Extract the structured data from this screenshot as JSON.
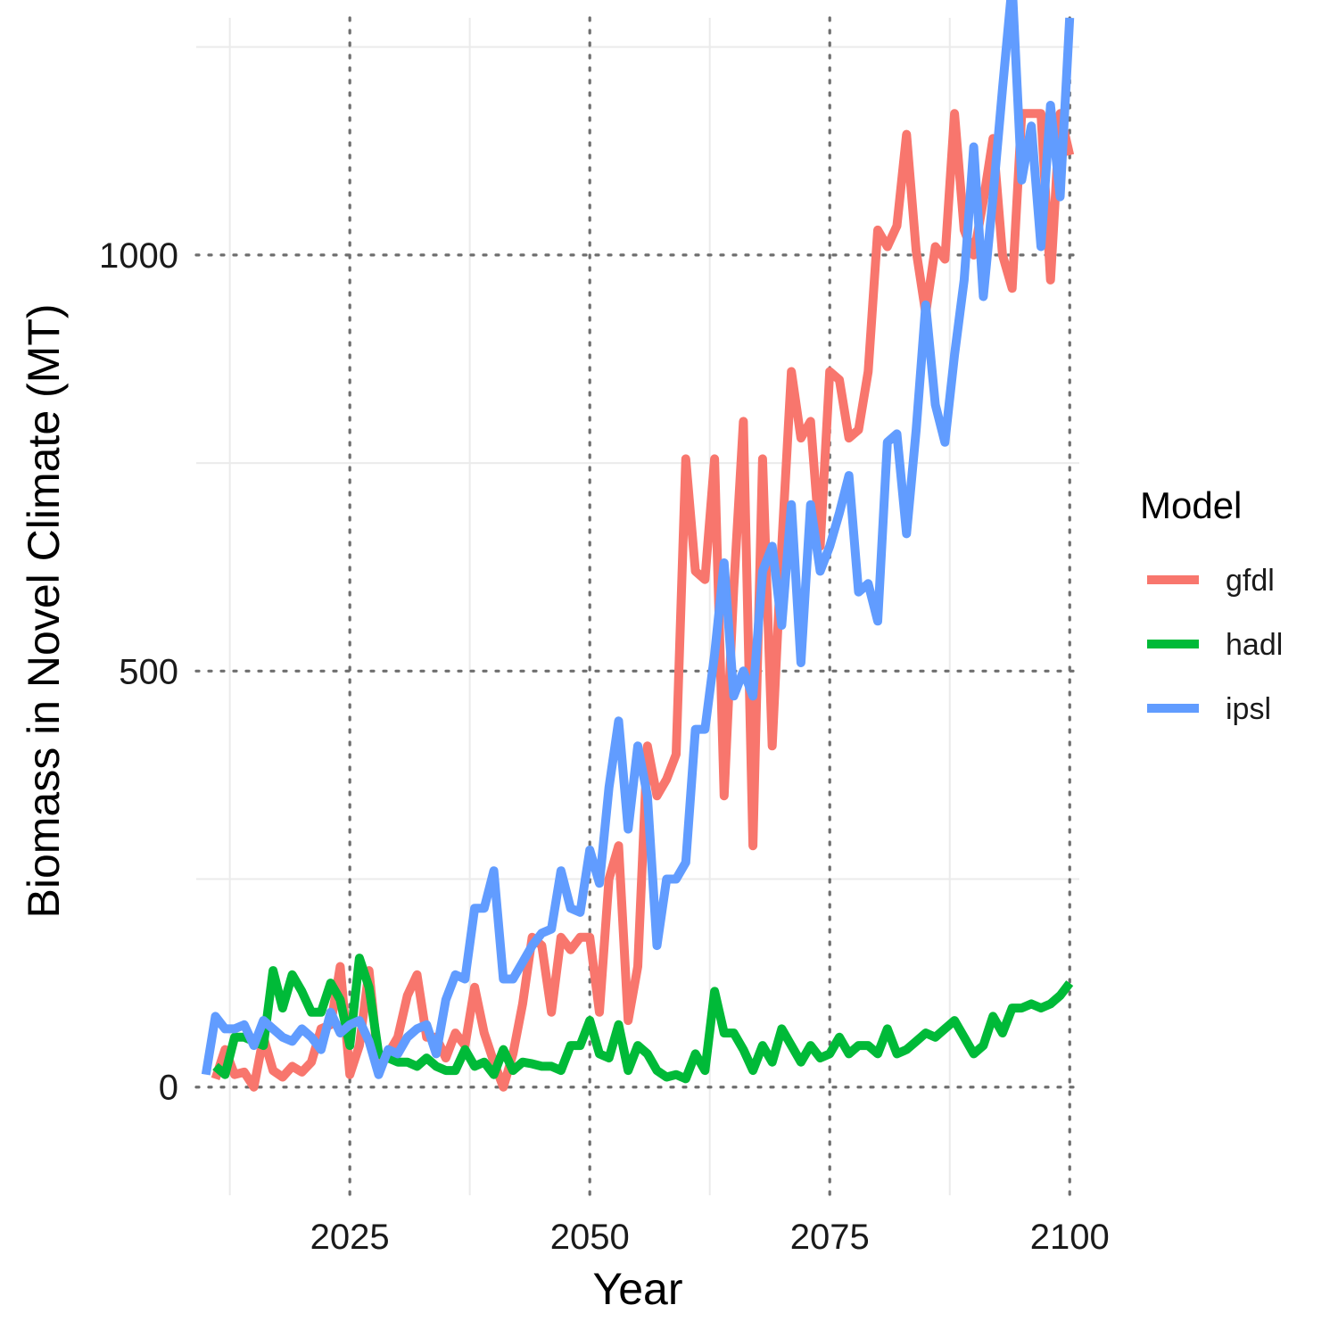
{
  "chart_data": {
    "type": "line",
    "xlabel": "Year",
    "ylabel": "Biomass in Novel Climate (MT)",
    "xlim": [
      2009,
      2101
    ],
    "ylim": [
      -130,
      1285
    ],
    "x_ticks": [
      2025,
      2050,
      2075,
      2100
    ],
    "x_tick_labels": [
      "2025",
      "2050",
      "2075",
      "2100"
    ],
    "y_ticks": [
      0,
      500,
      1000
    ],
    "y_tick_labels": [
      "0",
      "500",
      "1000"
    ],
    "grid": true,
    "legend": {
      "title": "Model",
      "position": "right"
    },
    "series": [
      {
        "name": "gfdl",
        "color": "#F8766D",
        "x": [
          2011,
          2012,
          2013,
          2014,
          2015,
          2016,
          2017,
          2018,
          2019,
          2020,
          2021,
          2022,
          2023,
          2024,
          2025,
          2026,
          2027,
          2028,
          2029,
          2030,
          2031,
          2032,
          2033,
          2034,
          2035,
          2036,
          2037,
          2038,
          2039,
          2040,
          2041,
          2042,
          2043,
          2044,
          2045,
          2046,
          2047,
          2048,
          2049,
          2050,
          2051,
          2052,
          2053,
          2054,
          2055,
          2056,
          2057,
          2058,
          2059,
          2060,
          2061,
          2062,
          2063,
          2064,
          2065,
          2066,
          2067,
          2068,
          2069,
          2070,
          2071,
          2072,
          2073,
          2074,
          2075,
          2076,
          2077,
          2078,
          2079,
          2080,
          2081,
          2082,
          2083,
          2084,
          2085,
          2086,
          2087,
          2088,
          2089,
          2090,
          2091,
          2092,
          2093,
          2094,
          2095,
          2096,
          2097,
          2098,
          2099,
          2100
        ],
        "y": [
          10,
          45,
          15,
          18,
          0,
          60,
          20,
          12,
          25,
          18,
          30,
          70,
          75,
          145,
          15,
          50,
          140,
          25,
          40,
          60,
          110,
          135,
          60,
          60,
          35,
          65,
          50,
          120,
          65,
          30,
          0,
          40,
          100,
          180,
          170,
          90,
          180,
          165,
          180,
          180,
          90,
          250,
          290,
          80,
          145,
          410,
          350,
          370,
          400,
          755,
          620,
          610,
          755,
          350,
          600,
          800,
          290,
          755,
          410,
          650,
          860,
          780,
          800,
          650,
          860,
          850,
          780,
          790,
          860,
          1030,
          1010,
          1035,
          1145,
          1005,
          930,
          1010,
          995,
          1170,
          1030,
          1000,
          1065,
          1140,
          1000,
          960,
          1170,
          1170,
          1170,
          970,
          1170,
          1120
        ]
      },
      {
        "name": "hadl",
        "color": "#00BA38",
        "x": [
          2011,
          2012,
          2013,
          2014,
          2015,
          2016,
          2017,
          2018,
          2019,
          2020,
          2021,
          2022,
          2023,
          2024,
          2025,
          2026,
          2027,
          2028,
          2029,
          2030,
          2031,
          2032,
          2033,
          2034,
          2035,
          2036,
          2037,
          2038,
          2039,
          2040,
          2041,
          2042,
          2043,
          2044,
          2045,
          2046,
          2047,
          2048,
          2049,
          2050,
          2051,
          2052,
          2053,
          2054,
          2055,
          2056,
          2057,
          2058,
          2059,
          2060,
          2061,
          2062,
          2063,
          2064,
          2065,
          2066,
          2067,
          2068,
          2069,
          2070,
          2071,
          2072,
          2073,
          2074,
          2075,
          2076,
          2077,
          2078,
          2079,
          2080,
          2081,
          2082,
          2083,
          2084,
          2085,
          2086,
          2087,
          2088,
          2089,
          2090,
          2091,
          2092,
          2093,
          2094,
          2095,
          2096,
          2097,
          2098,
          2099,
          2100
        ],
        "y": [
          25,
          15,
          60,
          60,
          55,
          50,
          140,
          95,
          135,
          115,
          90,
          90,
          125,
          105,
          50,
          155,
          120,
          40,
          35,
          30,
          30,
          25,
          35,
          25,
          20,
          20,
          45,
          25,
          30,
          15,
          45,
          20,
          30,
          28,
          25,
          25,
          20,
          50,
          50,
          80,
          40,
          35,
          75,
          20,
          50,
          40,
          20,
          12,
          15,
          10,
          40,
          20,
          115,
          65,
          65,
          45,
          20,
          50,
          30,
          70,
          50,
          30,
          50,
          35,
          40,
          60,
          40,
          50,
          50,
          40,
          70,
          40,
          45,
          55,
          65,
          60,
          70,
          80,
          60,
          40,
          50,
          85,
          65,
          95,
          95,
          100,
          95,
          100,
          110,
          125
        ]
      },
      {
        "name": "ipsl",
        "color": "#619CFF",
        "x": [
          2010,
          2011,
          2012,
          2013,
          2014,
          2015,
          2016,
          2017,
          2018,
          2019,
          2020,
          2021,
          2022,
          2023,
          2024,
          2025,
          2026,
          2027,
          2028,
          2029,
          2030,
          2031,
          2032,
          2033,
          2034,
          2035,
          2036,
          2037,
          2038,
          2039,
          2040,
          2041,
          2042,
          2043,
          2044,
          2045,
          2046,
          2047,
          2048,
          2049,
          2050,
          2051,
          2052,
          2053,
          2054,
          2055,
          2056,
          2057,
          2058,
          2059,
          2060,
          2061,
          2062,
          2063,
          2064,
          2065,
          2066,
          2067,
          2068,
          2069,
          2070,
          2071,
          2072,
          2073,
          2074,
          2075,
          2076,
          2077,
          2078,
          2079,
          2080,
          2081,
          2082,
          2083,
          2084,
          2085,
          2086,
          2087,
          2088,
          2089,
          2090,
          2091,
          2092,
          2093,
          2094,
          2095,
          2096,
          2097,
          2098,
          2099,
          2100
        ],
        "y": [
          15,
          85,
          70,
          70,
          75,
          50,
          80,
          70,
          60,
          55,
          70,
          60,
          45,
          90,
          65,
          75,
          80,
          55,
          15,
          45,
          40,
          60,
          70,
          75,
          40,
          105,
          135,
          130,
          215,
          215,
          260,
          130,
          130,
          150,
          170,
          185,
          190,
          260,
          215,
          210,
          285,
          245,
          360,
          440,
          310,
          410,
          350,
          170,
          250,
          250,
          270,
          430,
          430,
          520,
          630,
          470,
          500,
          470,
          620,
          650,
          555,
          700,
          510,
          700,
          620,
          650,
          690,
          735,
          595,
          605,
          560,
          775,
          785,
          665,
          790,
          940,
          820,
          775,
          880,
          970,
          1130,
          950,
          1070,
          1200,
          1325,
          1090,
          1155,
          1010,
          1180,
          1070,
          1285
        ]
      }
    ]
  }
}
